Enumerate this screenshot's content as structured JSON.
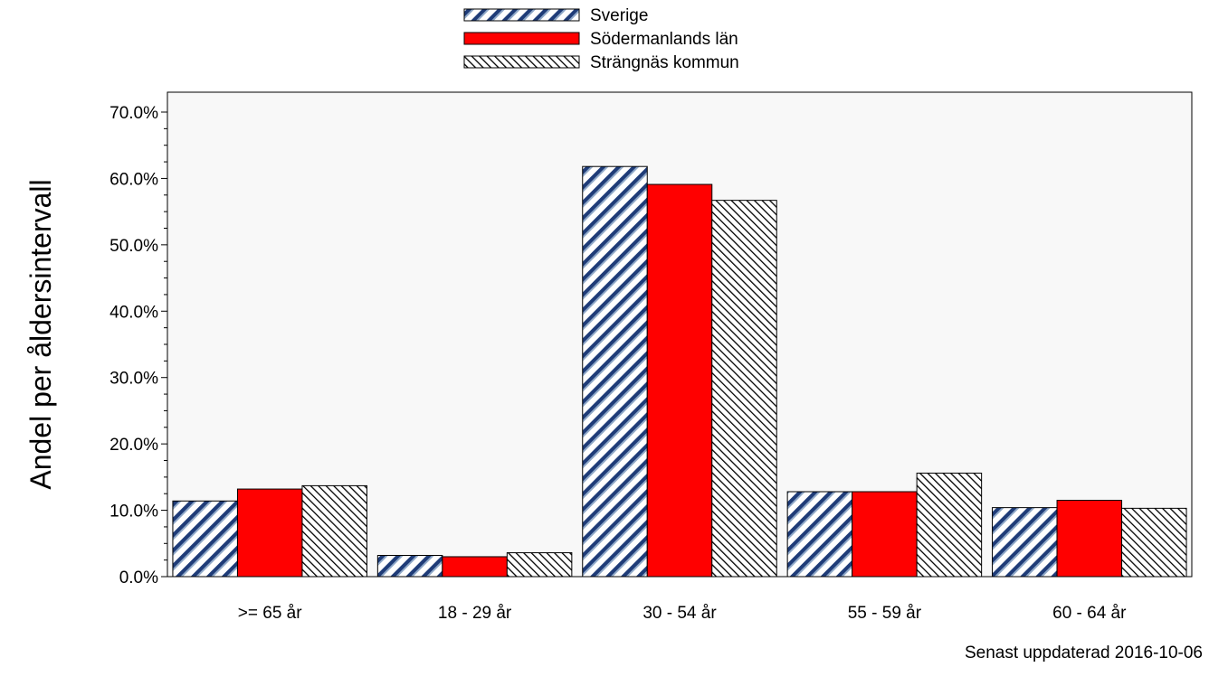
{
  "chart_data": {
    "type": "bar",
    "categories": [
      ">= 65 år",
      "18 - 29 år",
      "30 - 54 år",
      "55 - 59 år",
      "60 - 64 år"
    ],
    "series": [
      {
        "name": "Sverige",
        "values": [
          11.4,
          3.2,
          61.8,
          12.8,
          10.4
        ],
        "color": "#1f3c78",
        "pattern": "wide-diagonal-stripes"
      },
      {
        "name": "Södermanlands län",
        "values": [
          13.2,
          3.0,
          59.1,
          12.8,
          11.5
        ],
        "color": "#ff0000",
        "pattern": "solid"
      },
      {
        "name": "Strängnäs kommun",
        "values": [
          13.7,
          3.6,
          56.7,
          15.6,
          10.3
        ],
        "color": "#000000",
        "pattern": "fine-diagonal-hatch"
      }
    ],
    "ylabel": "Andel per åldersintervall",
    "ylim": [
      0,
      70
    ],
    "yticks": [
      "0.0%",
      "10.0%",
      "20.0%",
      "30.0%",
      "40.0%",
      "50.0%",
      "60.0%",
      "70.0%"
    ],
    "legend_position": "top-center",
    "plot_background": "#f8f8f8",
    "grid": false
  },
  "footer": {
    "updated": "Senast uppdaterad 2016-10-06"
  }
}
